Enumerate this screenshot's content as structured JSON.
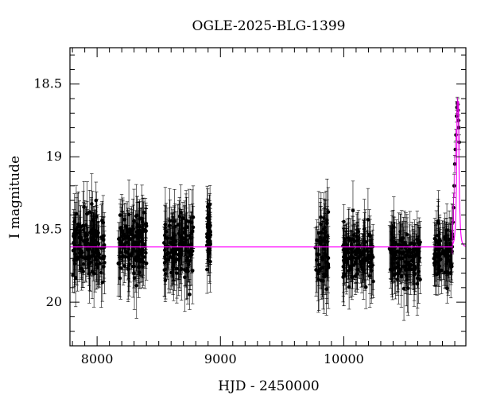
{
  "chart_data": {
    "type": "scatter",
    "title": "OGLE-2025-BLG-1399",
    "xlabel": "HJD - 2450000",
    "ylabel": "I magnitude",
    "xlim": [
      7780,
      10990
    ],
    "ylim": [
      20.3,
      18.25
    ],
    "y_inverted": true,
    "grid": false,
    "xticks": [
      8000,
      9000,
      10000
    ],
    "yticks": [
      18.5,
      19,
      19.5,
      20
    ],
    "xtick_labels": [
      "8000",
      "9000",
      "10000"
    ],
    "ytick_labels": [
      "18.5",
      "19",
      "19.5",
      "20"
    ],
    "colors": {
      "points": "#000000",
      "model": "#ff00ff",
      "model_error": "#cc00cc"
    },
    "baseline_magnitude": 19.62,
    "observing_seasons": [
      {
        "start": 7800,
        "end": 8060,
        "mean_mag": 19.6,
        "scatter": 0.22,
        "errorbar": 0.16
      },
      {
        "start": 8170,
        "end": 8400,
        "mean_mag": 19.6,
        "scatter": 0.2,
        "errorbar": 0.16
      },
      {
        "start": 8540,
        "end": 8780,
        "mean_mag": 19.62,
        "scatter": 0.22,
        "errorbar": 0.17
      },
      {
        "start": 8890,
        "end": 8920,
        "mean_mag": 19.55,
        "scatter": 0.18,
        "errorbar": 0.15
      },
      {
        "start": 9770,
        "end": 9880,
        "mean_mag": 19.65,
        "scatter": 0.22,
        "errorbar": 0.2
      },
      {
        "start": 9990,
        "end": 10240,
        "mean_mag": 19.68,
        "scatter": 0.15,
        "errorbar": 0.15
      },
      {
        "start": 10370,
        "end": 10620,
        "mean_mag": 19.68,
        "scatter": 0.15,
        "errorbar": 0.15
      },
      {
        "start": 10730,
        "end": 10880,
        "mean_mag": 19.66,
        "scatter": 0.15,
        "errorbar": 0.15
      }
    ],
    "event": {
      "peak_hjd": 10925,
      "peak_mag": 18.62,
      "rise_start_hjd": 10880,
      "points": [
        {
          "x": 10880,
          "y": 19.55,
          "err": 0.12
        },
        {
          "x": 10885,
          "y": 19.45,
          "err": 0.12
        },
        {
          "x": 10890,
          "y": 19.35,
          "err": 0.1
        },
        {
          "x": 10895,
          "y": 19.2,
          "err": 0.08
        },
        {
          "x": 10900,
          "y": 19.05,
          "err": 0.06
        },
        {
          "x": 10905,
          "y": 18.95,
          "err": 0.05
        },
        {
          "x": 10910,
          "y": 18.85,
          "err": 0.04
        },
        {
          "x": 10915,
          "y": 18.72,
          "err": 0.04
        },
        {
          "x": 10918,
          "y": 18.66,
          "err": 0.04
        },
        {
          "x": 10921,
          "y": 18.63,
          "err": 0.04
        },
        {
          "x": 10924,
          "y": 18.64,
          "err": 0.04
        },
        {
          "x": 10927,
          "y": 18.68,
          "err": 0.04
        },
        {
          "x": 10930,
          "y": 18.75,
          "err": 0.04
        },
        {
          "x": 10933,
          "y": 18.8,
          "err": 0.05
        },
        {
          "x": 10936,
          "y": 18.9,
          "err": 0.05
        }
      ]
    }
  }
}
